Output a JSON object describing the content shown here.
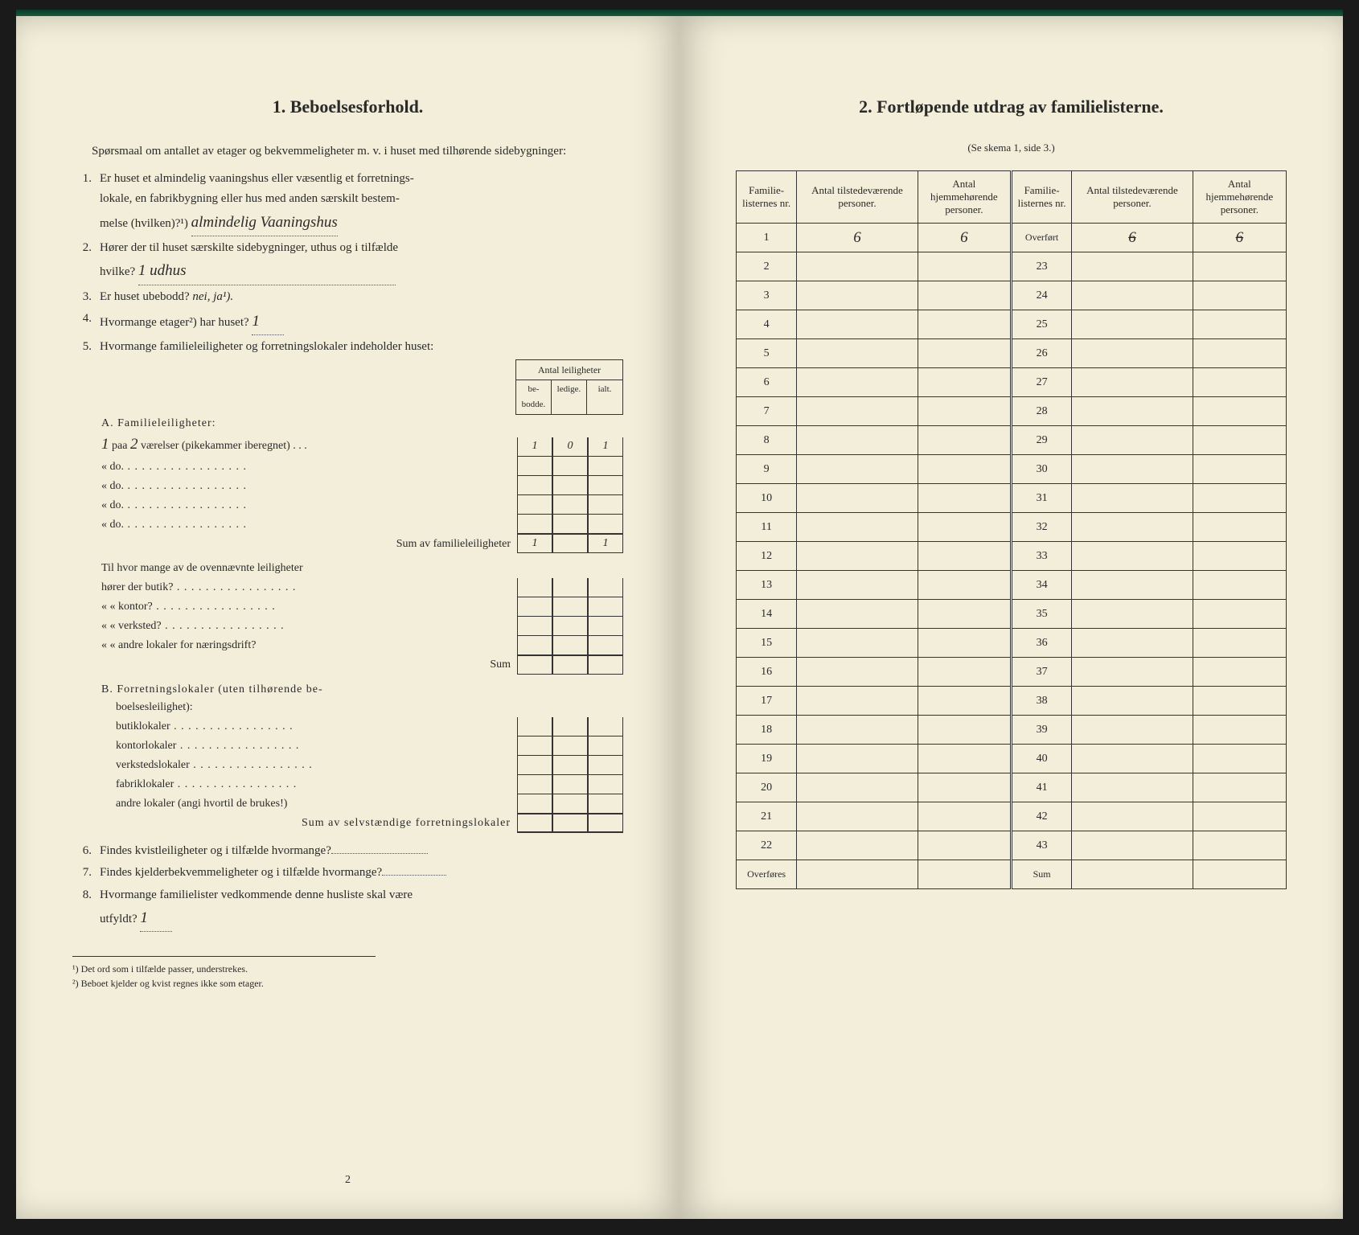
{
  "left": {
    "title": "1.   Beboelsesforhold.",
    "intro": "Spørsmaal om antallet av etager og bekvemmeligheter m. v. i huset med tilhørende sidebygninger:",
    "q1_a": "Er huset et almindelig vaaningshus eller væsentlig et forretnings-",
    "q1_b": "lokale, en fabrikbygning eller hus med anden særskilt bestem-",
    "q1_c": "melse (hvilken)?¹)",
    "q1_hand": "almindelig Vaaningshus",
    "q2_a": "Hører der til huset særskilte sidebygninger, uthus og i tilfælde",
    "q2_b": "hvilke?",
    "q2_hand": "1 udhus",
    "q3": "Er huset ubebodd?",
    "q3_opts": "nei, ja¹).",
    "q4": "Hvormange etager²) har huset?",
    "q4_hand": "1",
    "q5": "Hvormange familieleiligheter og forretningslokaler indeholder huset:",
    "antal_head": "Antal leiligheter",
    "antal_c1": "be-\nbodde.",
    "antal_c2": "ledige.",
    "antal_c3": "ialt.",
    "secA": "A. Familieleiligheter:",
    "rowA1": "paa",
    "rowA1_hand": "2",
    "rowA1_rest": "værelser (pikekammer iberegnet)",
    "rowA2": "«               do.",
    "rowA3": "«               do.",
    "rowA4": "«               do.",
    "rowA5": "«               do.",
    "sumA": "Sum av familieleiligheter",
    "a_be": "1",
    "a_le": "0",
    "a_ia": "1",
    "s_be": "1",
    "s_ia": "1",
    "til": "Til hvor mange av de ovennævnte leiligheter",
    "til1": "hører der butik?",
    "til2": "«      «   kontor?",
    "til3": "«      «   verksted?",
    "til4": "«      «   andre lokaler for næringsdrift?",
    "tilSum": "Sum",
    "secB": "B. Forretningslokaler (uten tilhørende be-",
    "secB2": "boelsesleilighet):",
    "b1": "butiklokaler",
    "b2": "kontorlokaler",
    "b3": "verkstedslokaler",
    "b4": "fabriklokaler",
    "b5": "andre lokaler (angi hvortil de brukes!)",
    "bSum": "Sum av selvstændige forretningslokaler",
    "q6": "Findes kvistleiligheter og i tilfælde hvormange?",
    "q7": "Findes kjelderbekvemmeligheter og i tilfælde hvormange?",
    "q8_a": "Hvormange familielister vedkommende denne husliste skal være",
    "q8_b": "utfyldt?",
    "q8_hand": "1",
    "fn1": "¹) Det ord som i tilfælde passer, understrekes.",
    "fn2": "²) Beboet kjelder og kvist regnes ikke som etager.",
    "pnum": "2"
  },
  "right": {
    "title": "2.   Fortløpende utdrag av familielisterne.",
    "sub": "(Se skema 1, side 3.)",
    "h1": "Familie-\nlisternes\nnr.",
    "h2": "Antal\ntilstedeværende\npersoner.",
    "h3": "Antal\nhjemmehørende\npersoner.",
    "overfort": "Overført",
    "overfores": "Overføres",
    "sum": "Sum",
    "r1_c2": "6",
    "r1_c3": "6",
    "r1b_c2": "6",
    "r1b_c3": "6",
    "rows_left": [
      "1",
      "2",
      "3",
      "4",
      "5",
      "6",
      "7",
      "8",
      "9",
      "10",
      "11",
      "12",
      "13",
      "14",
      "15",
      "16",
      "17",
      "18",
      "19",
      "20",
      "21",
      "22"
    ],
    "rows_right": [
      "23",
      "24",
      "25",
      "26",
      "27",
      "28",
      "29",
      "30",
      "31",
      "32",
      "33",
      "34",
      "35",
      "36",
      "37",
      "38",
      "39",
      "40",
      "41",
      "42",
      "43"
    ]
  }
}
